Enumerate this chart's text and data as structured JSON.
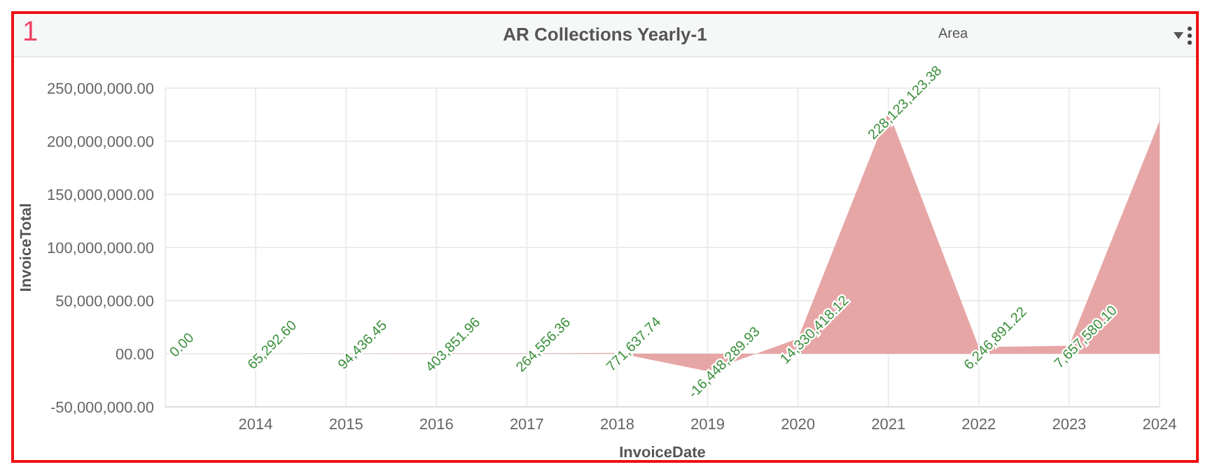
{
  "chart_data": {
    "type": "area",
    "title": "AR Collections Yearly-1",
    "xlabel": "InvoiceDate",
    "ylabel": "InvoiceTotal",
    "annotations": [
      "1",
      "Area"
    ],
    "x": [
      2013,
      2014,
      2015,
      2016,
      2017,
      2018,
      2019,
      2020,
      2021,
      2022,
      2023,
      2024
    ],
    "series": [
      {
        "color": "#e49c9c",
        "values": [
          0,
          65292.6,
          94436.45,
          403851.96,
          264556.36,
          771637.74,
          -16448289.93,
          14330418.12,
          228123123.38,
          6246891.22,
          7657580.1,
          219000000
        ],
        "value_labels": [
          "0.00",
          "65,292.60",
          "94,436.45",
          "403,851.96",
          "264,556.36",
          "771,637.74",
          "-16,448,289.93",
          "14,330,418.12",
          "228,123,123.38",
          "6,246,891.22",
          "7,657,580.10",
          null
        ]
      }
    ],
    "xlim": [
      2013,
      2024
    ],
    "xticks": [
      2014,
      2015,
      2016,
      2017,
      2018,
      2019,
      2020,
      2021,
      2022,
      2023,
      2024
    ],
    "ylim": [
      -50000000,
      250000000
    ],
    "yticks": [
      {
        "value": -50000000,
        "label": "-50,000,000.00"
      },
      {
        "value": 0,
        "label": "00.00"
      },
      {
        "value": 50000000,
        "label": "50,000,000.00"
      },
      {
        "value": 100000000,
        "label": "100,000,000.00"
      },
      {
        "value": 150000000,
        "label": "150,000,000.00"
      },
      {
        "value": 200000000,
        "label": "200,000,000.00"
      },
      {
        "value": 250000000,
        "label": "250,000,000.00"
      }
    ],
    "grid": true,
    "legend": false
  }
}
